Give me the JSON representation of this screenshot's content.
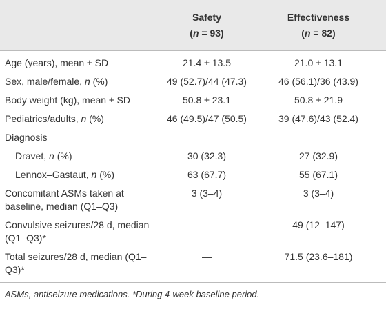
{
  "table": {
    "header": [
      {
        "title": "Safety",
        "n": [
          "(",
          "n",
          " = 93)"
        ]
      },
      {
        "title": "Effectiveness",
        "n": [
          "(",
          "n",
          " = 82)"
        ]
      }
    ],
    "rows": [
      {
        "label": [
          "Age (years), mean ± SD"
        ],
        "values": [
          "21.4 ± 13.5",
          "21.0 ± 13.1"
        ]
      },
      {
        "label": [
          "Sex, male/female, ",
          "n",
          " (%)"
        ],
        "values": [
          "49 (52.7)/44 (47.3)",
          "46 (56.1)/36 (43.9)"
        ]
      },
      {
        "label": [
          "Body weight (kg), mean ± SD"
        ],
        "values": [
          "50.8 ± 23.1",
          "50.8 ± 21.9"
        ]
      },
      {
        "label": [
          "Pediatrics/adults, ",
          "n",
          " (%)"
        ],
        "values": [
          "46 (49.5)/47 (50.5)",
          "39 (47.6)/43 (52.4)"
        ]
      },
      {
        "label": [
          "Diagnosis"
        ],
        "rows": [
          {
            "label": [
              "Dravet, ",
              "n",
              " (%)"
            ],
            "values": [
              "30 (32.3)",
              "27 (32.9)"
            ]
          },
          {
            "label": [
              "Lennox–Gastaut, ",
              "n",
              " (%)"
            ],
            "values": [
              "63 (67.7)",
              "55 (67.1)"
            ]
          }
        ]
      },
      {
        "label": [
          "Concomitant ASMs taken at baseline, median (Q1–Q3)"
        ],
        "values": [
          "3 (3–4)",
          "3 (3–4)"
        ]
      },
      {
        "label": [
          "Convulsive seizures/28 d, median (Q1–Q3)*"
        ],
        "values": [
          "—",
          "49 (12–147)"
        ]
      },
      {
        "label": [
          "Total seizures/28 d, median (Q1–Q3)*"
        ],
        "values": [
          "—",
          "71.5 (23.6–181)"
        ]
      }
    ],
    "footnote": "ASMs, antiseizure medications. *During 4-week baseline period."
  }
}
